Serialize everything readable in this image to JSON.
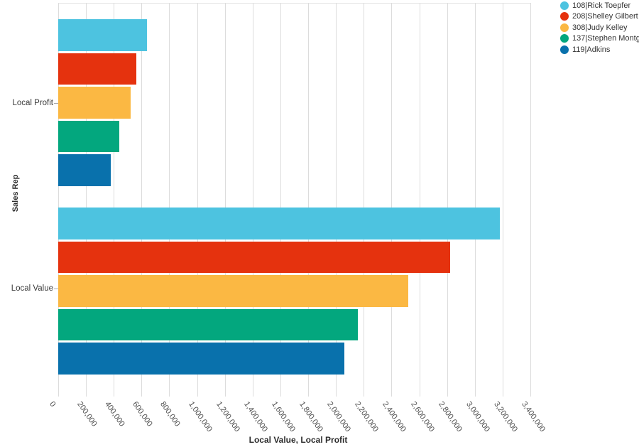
{
  "chart_data": {
    "type": "bar",
    "orientation": "horizontal",
    "title": "",
    "xlabel": "Local Value, Local Profit",
    "ylabel": "Sales Rep",
    "categories": [
      "Local Profit",
      "Local Value"
    ],
    "xlim": [
      0,
      3400000
    ],
    "x_tick_step": 200000,
    "x_ticks": [
      "0",
      "200,000",
      "400,000",
      "600,000",
      "800,000",
      "1,000,000",
      "1,200,000",
      "1,400,000",
      "1,600,000",
      "1,800,000",
      "2,000,000",
      "2,200,000",
      "2,400,000",
      "2,600,000",
      "2,800,000",
      "3,000,000",
      "3,200,000",
      "3,400,000"
    ],
    "grid": "vertical",
    "legend_position": "top-right",
    "series": [
      {
        "name": "108|Rick Toepfer",
        "color": "#4dc3e0",
        "values": [
          640000,
          3180000
        ]
      },
      {
        "name": "208|Shelley Gilbert",
        "color": "#e5320e",
        "values": [
          560000,
          2820000
        ]
      },
      {
        "name": "308|Judy Kelley",
        "color": "#fbb843",
        "values": [
          520000,
          2520000
        ]
      },
      {
        "name": "137|Stephen Montg",
        "color": "#03a77e",
        "values": [
          440000,
          2160000
        ]
      },
      {
        "name": "119|Adkins",
        "color": "#0971ac",
        "values": [
          380000,
          2060000
        ]
      }
    ],
    "colors": {
      "gridline": "#dcdcdc",
      "tick_label": "#4d4d4d",
      "axis_title": "#2b2b2b"
    }
  }
}
